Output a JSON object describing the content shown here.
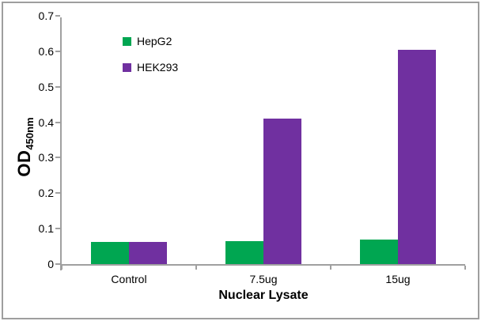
{
  "figure": {
    "background": "#FFFFFF",
    "frame_color": "#9E9E9E"
  },
  "chart_data": {
    "type": "bar",
    "title": "",
    "categories": [
      "Control",
      "7.5ug",
      "15ug"
    ],
    "series": [
      {
        "name": "HepG2",
        "color": "#00A651",
        "values": [
          0.063,
          0.065,
          0.07
        ]
      },
      {
        "name": "HEK293",
        "color": "#7030A0",
        "values": [
          0.063,
          0.41,
          0.605
        ]
      }
    ],
    "xlabel": "Nuclear Lysate",
    "ylabel_main": "OD",
    "ylabel_sub": "450nm",
    "ylim": [
      0,
      0.7
    ],
    "ytick_step": 0.1,
    "yticks": [
      "0",
      "0.1",
      "0.2",
      "0.3",
      "0.4",
      "0.5",
      "0.6",
      "0.7"
    ],
    "grid": false,
    "legend_position": "top-left-inside",
    "axis_color": "#A0A0A0",
    "text_color": "#000000"
  }
}
